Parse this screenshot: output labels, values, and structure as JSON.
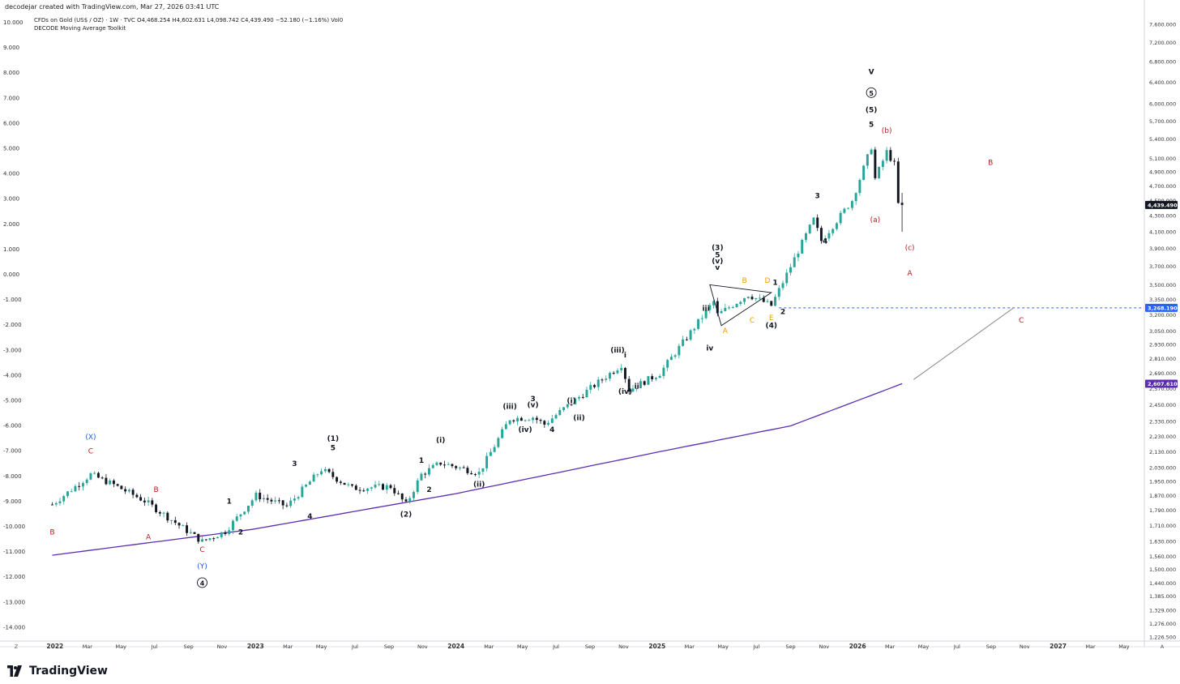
{
  "header": {
    "credit": "decodejar created with TradingView.com, Mar 27, 2026 03:41 UTC",
    "symbol_line": "CFDs on Gold (US$ / OZ) · 1W · TVC  O4,468.254  H4,602.631  L4,098.742  C4,439.490  −52.180 (−1.16%)  Vol0",
    "indicator_line": "DECODE Moving Average Toolkit"
  },
  "brand": {
    "name": "TradingView"
  },
  "colors": {
    "up": "#26a69a",
    "down": "#131722",
    "ma": "#5b2db0",
    "red_label": "#b71c1c",
    "blue_label": "#1e5bd8",
    "orange_label": "#f59b00",
    "dashed": "#2962ff",
    "price_tag": "#131722"
  },
  "chart_data": {
    "type": "candlestick",
    "title": "CFDs on Gold (US$ / OZ) · 1W · TVC",
    "left_axis": {
      "ticks": [
        "10.000",
        "9.000",
        "8.000",
        "7.000",
        "6.000",
        "5.000",
        "4.000",
        "3.000",
        "2.000",
        "1.000",
        "0.000",
        "-1.000",
        "-2.000",
        "-3.000",
        "-4.000",
        "-5.000",
        "-6.000",
        "-7.000",
        "-8.000",
        "-9.000",
        "-10.000",
        "-11.000",
        "-12.000",
        "-13.000",
        "-14.000"
      ]
    },
    "right_axis": {
      "scale": "log",
      "ticks": [
        "7,600.000",
        "7,200.000",
        "6,800.000",
        "6,400.000",
        "6,000.000",
        "5,700.000",
        "5,400.000",
        "5,100.000",
        "4,900.000",
        "4,700.000",
        "4,500.000",
        "4,300.000",
        "4,100.000",
        "3,900.000",
        "3,700.000",
        "3,500.000",
        "3,350.000",
        "3,200.000",
        "3,050.000",
        "2,930.000",
        "2,810.000",
        "2,690.000",
        "2,570.000",
        "2,450.000",
        "2,330.000",
        "2,230.000",
        "2,130.000",
        "2,030.000",
        "1,950.000",
        "1,870.000",
        "1,790.000",
        "1,710.000",
        "1,630.000",
        "1,560.000",
        "1,500.000",
        "1,440.000",
        "1,385.000",
        "1,329.000",
        "1,276.000",
        "1,226.500"
      ],
      "price_tags": [
        {
          "value": "4,439.490",
          "kind": "last"
        },
        {
          "value": "3,268.190",
          "kind": "level"
        },
        {
          "value": "2,607.610",
          "kind": "ma"
        }
      ]
    },
    "x_axis": {
      "ticks": [
        "2022",
        "Mar",
        "May",
        "Jul",
        "Sep",
        "Nov",
        "2023",
        "Mar",
        "May",
        "Jul",
        "Sep",
        "Nov",
        "2024",
        "Mar",
        "May",
        "Jul",
        "Sep",
        "Nov",
        "2025",
        "Mar",
        "May",
        "Jul",
        "Sep",
        "Nov",
        "2026",
        "Mar",
        "May",
        "Jul",
        "Sep",
        "Nov",
        "2027",
        "Mar",
        "May"
      ],
      "corner_left": "Z",
      "corner_right": "A"
    },
    "ohlc_last": {
      "open": 4468.254,
      "high": 4602.631,
      "low": 4098.742,
      "close": 4439.49,
      "change": -52.18,
      "change_pct": -1.16
    },
    "anchor_prices": [
      [
        "2021-12-27",
        1820
      ],
      [
        "2022-03-07",
        1990
      ],
      [
        "2022-04-18",
        1930
      ],
      [
        "2022-06-13",
        1840
      ],
      [
        "2022-09-26",
        1630
      ],
      [
        "2022-11-07",
        1680
      ],
      [
        "2023-01-02",
        1870
      ],
      [
        "2023-02-27",
        1810
      ],
      [
        "2023-05-01",
        2020
      ],
      [
        "2023-06-26",
        1910
      ],
      [
        "2023-09-04",
        1920
      ],
      [
        "2023-10-02",
        1820
      ],
      [
        "2023-10-30",
        1990
      ],
      [
        "2023-12-04",
        2060
      ],
      [
        "2024-02-12",
        2000
      ],
      [
        "2024-04-08",
        2350
      ],
      [
        "2024-05-20",
        2360
      ],
      [
        "2024-06-10",
        2310
      ],
      [
        "2024-07-15",
        2420
      ],
      [
        "2024-10-28",
        2760
      ],
      [
        "2024-11-11",
        2560
      ],
      [
        "2025-01-06",
        2690
      ],
      [
        "2025-04-14",
        3330
      ],
      [
        "2025-04-21",
        3200
      ],
      [
        "2025-06-16",
        3400
      ],
      [
        "2025-07-28",
        3290
      ],
      [
        "2025-10-13",
        4250
      ],
      [
        "2025-10-27",
        3990
      ],
      [
        "2025-12-22",
        4500
      ],
      [
        "2026-01-26",
        5280
      ],
      [
        "2026-02-02",
        4800
      ],
      [
        "2026-02-23",
        5200
      ],
      [
        "2026-03-09",
        5010
      ],
      [
        "2026-03-16",
        4450
      ]
    ],
    "moving_average": {
      "name": "DECODE Moving Average Toolkit",
      "points": [
        [
          "2021-12-27",
          1565
        ],
        [
          "2022-12-26",
          1690
        ],
        [
          "2024-01-01",
          1880
        ],
        [
          "2025-01-06",
          2130
        ],
        [
          "2025-09-01",
          2300
        ],
        [
          "2026-03-23",
          2607.61
        ]
      ]
    },
    "level_line": {
      "value": 3268.19,
      "style": "dashed"
    },
    "projection_line": {
      "from": [
        "2026-04-13",
        2640
      ],
      "to": [
        "2026-10-12",
        3268.19
      ]
    },
    "triangle": {
      "points": [
        [
          "2025-04-07",
          3500
        ],
        [
          "2025-07-28",
          3420
        ],
        [
          "2025-04-28",
          3100
        ]
      ]
    },
    "wave_labels": [
      {
        "text": "B",
        "date": "2021-12-27",
        "price": 1665,
        "color": "red"
      },
      {
        "text": "(X)",
        "date": "2022-03-07",
        "price": 2210,
        "color": "blue"
      },
      {
        "text": "C",
        "date": "2022-03-07",
        "price": 2120,
        "color": "red"
      },
      {
        "text": "B",
        "date": "2022-07-04",
        "price": 1890,
        "color": "red"
      },
      {
        "text": "A",
        "date": "2022-06-20",
        "price": 1640,
        "color": "red"
      },
      {
        "text": "C",
        "date": "2022-09-26",
        "price": 1580,
        "color": "red"
      },
      {
        "text": "(Y)",
        "date": "2022-09-26",
        "price": 1505,
        "color": "blue"
      },
      {
        "text": "4",
        "date": "2022-09-26",
        "price": 1430,
        "color": "black",
        "circled": true
      },
      {
        "text": "1",
        "date": "2022-11-14",
        "price": 1825,
        "color": "black"
      },
      {
        "text": "2",
        "date": "2022-12-05",
        "price": 1665,
        "color": "black"
      },
      {
        "text": "3",
        "date": "2023-03-13",
        "price": 2040,
        "color": "black"
      },
      {
        "text": "4",
        "date": "2023-04-10",
        "price": 1745,
        "color": "black"
      },
      {
        "text": "(1)",
        "date": "2023-05-22",
        "price": 2200,
        "color": "black"
      },
      {
        "text": "5",
        "date": "2023-05-22",
        "price": 2140,
        "color": "black"
      },
      {
        "text": "(2)",
        "date": "2023-10-02",
        "price": 1755,
        "color": "black"
      },
      {
        "text": "1",
        "date": "2023-10-30",
        "price": 2060,
        "color": "black"
      },
      {
        "text": "2",
        "date": "2023-11-13",
        "price": 1890,
        "color": "black"
      },
      {
        "text": "(i)",
        "date": "2023-12-04",
        "price": 2190,
        "color": "black"
      },
      {
        "text": "(ii)",
        "date": "2024-02-12",
        "price": 1920,
        "color": "black"
      },
      {
        "text": "(iii)",
        "date": "2024-04-08",
        "price": 2420,
        "color": "black"
      },
      {
        "text": "(iv)",
        "date": "2024-05-06",
        "price": 2260,
        "color": "black"
      },
      {
        "text": "3",
        "date": "2024-05-20",
        "price": 2475,
        "color": "black"
      },
      {
        "text": "(v)",
        "date": "2024-05-20",
        "price": 2430,
        "color": "black"
      },
      {
        "text": "4",
        "date": "2024-06-24",
        "price": 2260,
        "color": "black"
      },
      {
        "text": "(i)",
        "date": "2024-07-29",
        "price": 2460,
        "color": "black"
      },
      {
        "text": "(ii)",
        "date": "2024-08-12",
        "price": 2340,
        "color": "black"
      },
      {
        "text": "(iii)",
        "date": "2024-10-21",
        "price": 2860,
        "color": "black"
      },
      {
        "text": "i",
        "date": "2024-11-04",
        "price": 2820,
        "color": "black"
      },
      {
        "text": "(iv)",
        "date": "2024-11-04",
        "price": 2530,
        "color": "black"
      },
      {
        "text": "ii",
        "date": "2024-11-25",
        "price": 2570,
        "color": "black"
      },
      {
        "text": "iii",
        "date": "2025-03-31",
        "price": 3240,
        "color": "black"
      },
      {
        "text": "iv",
        "date": "2025-04-07",
        "price": 2880,
        "color": "black"
      },
      {
        "text": "(3)",
        "date": "2025-04-21",
        "price": 3880,
        "color": "black"
      },
      {
        "text": "5",
        "date": "2025-04-21",
        "price": 3800,
        "color": "black"
      },
      {
        "text": "(v)",
        "date": "2025-04-21",
        "price": 3730,
        "color": "black"
      },
      {
        "text": "v",
        "date": "2025-04-21",
        "price": 3660,
        "color": "black"
      },
      {
        "text": "A",
        "date": "2025-05-05",
        "price": 3030,
        "color": "orange"
      },
      {
        "text": "B",
        "date": "2025-06-09",
        "price": 3520,
        "color": "orange"
      },
      {
        "text": "C",
        "date": "2025-06-23",
        "price": 3130,
        "color": "orange"
      },
      {
        "text": "D",
        "date": "2025-07-21",
        "price": 3520,
        "color": "orange"
      },
      {
        "text": "1",
        "date": "2025-08-04",
        "price": 3500,
        "color": "black"
      },
      {
        "text": "E",
        "date": "2025-07-28",
        "price": 3150,
        "color": "orange"
      },
      {
        "text": "(4)",
        "date": "2025-07-28",
        "price": 3080,
        "color": "black"
      },
      {
        "text": "2",
        "date": "2025-08-18",
        "price": 3210,
        "color": "black"
      },
      {
        "text": "3",
        "date": "2025-10-20",
        "price": 4530,
        "color": "black"
      },
      {
        "text": "4",
        "date": "2025-11-03",
        "price": 3960,
        "color": "black"
      },
      {
        "text": "V",
        "date": "2026-01-26",
        "price": 6550,
        "color": "black"
      },
      {
        "text": "5",
        "date": "2026-01-26",
        "price": 6150,
        "color": "black",
        "circled": true
      },
      {
        "text": "(5)",
        "date": "2026-01-26",
        "price": 5850,
        "color": "black"
      },
      {
        "text": "5",
        "date": "2026-01-26",
        "price": 5600,
        "color": "black"
      },
      {
        "text": "(b)",
        "date": "2026-02-23",
        "price": 5500,
        "color": "red"
      },
      {
        "text": "(a)",
        "date": "2026-02-02",
        "price": 4220,
        "color": "red"
      },
      {
        "text": "(c)",
        "date": "2026-04-06",
        "price": 3880,
        "color": "red"
      },
      {
        "text": "A",
        "date": "2026-04-06",
        "price": 3600,
        "color": "red"
      },
      {
        "text": "B",
        "date": "2026-08-31",
        "price": 5000,
        "color": "red"
      },
      {
        "text": "C",
        "date": "2026-10-26",
        "price": 3130,
        "color": "red"
      }
    ]
  }
}
